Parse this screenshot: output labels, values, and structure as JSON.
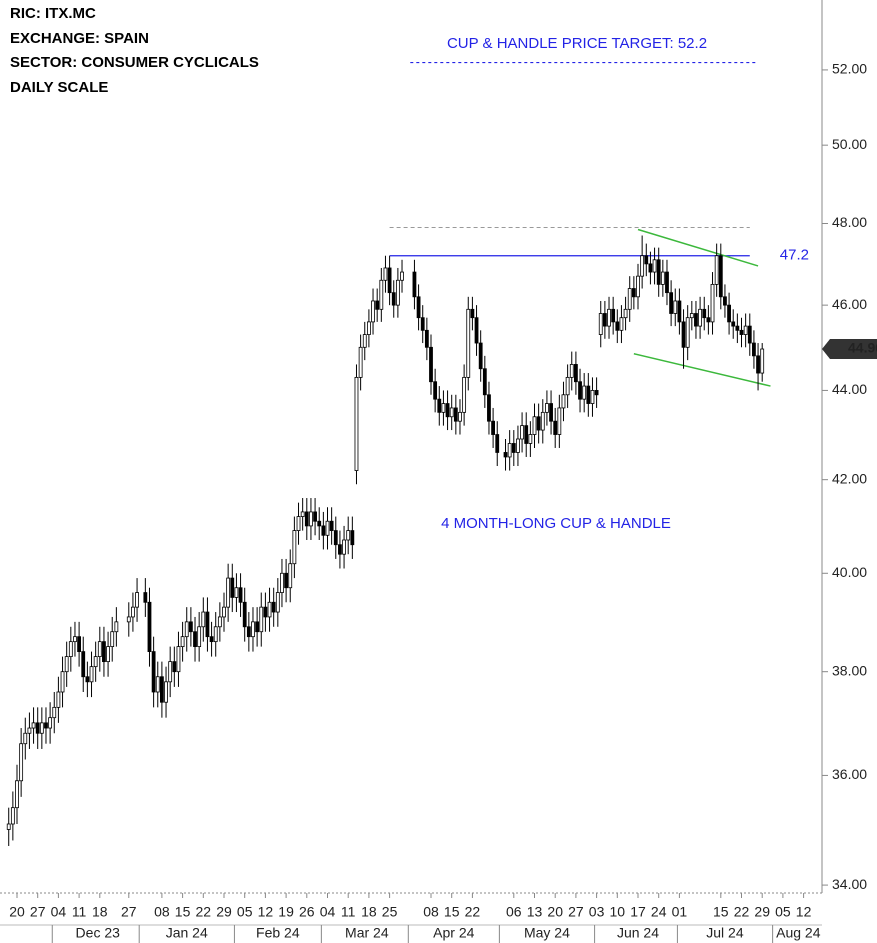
{
  "chart_data": {
    "type": "candlestick",
    "header": [
      "RIC:  ITX.MC",
      "EXCHANGE:  SPAIN",
      "SECTOR:  CONSUMER CYCLICALS",
      "DAILY SCALE"
    ],
    "target": {
      "text": "CUP & HANDLE PRICE TARGET: 52.2",
      "value": 52.2,
      "x": [
        "2024-04-01",
        "2024-07-26"
      ]
    },
    "pattern_label": "4 MONTH-LONG CUP & HANDLE",
    "resistance": {
      "value": 47.2,
      "x": [
        "2024-03-25",
        "2024-07-24"
      ]
    },
    "prior_high": {
      "value": 47.9,
      "x": [
        "2024-03-25",
        "2024-07-24"
      ]
    },
    "channel_upper": {
      "x": [
        "2024-06-17",
        "2024-07-26"
      ],
      "values": [
        47.85,
        46.95
      ]
    },
    "channel_lower": {
      "x": [
        "2024-06-14",
        "2024-07-31"
      ],
      "values": [
        44.85,
        44.1
      ]
    },
    "log_scale": true,
    "ylim": [
      33.86,
      53.93
    ],
    "yticks": [
      {
        "value": 34,
        "label": "34.00"
      },
      {
        "value": 36,
        "label": "36.00"
      },
      {
        "value": 38,
        "label": "38.00"
      },
      {
        "value": 40,
        "label": "40.00"
      },
      {
        "value": 42,
        "label": "42.00"
      },
      {
        "value": 44,
        "label": "44.00"
      },
      {
        "value": 46,
        "label": "46.00"
      },
      {
        "value": 48,
        "label": "48.00"
      },
      {
        "value": 50,
        "label": "50.00"
      },
      {
        "value": 52,
        "label": "52.00"
      }
    ],
    "xticks": [
      {
        "value": "2023-11-20",
        "label": "20"
      },
      {
        "value": "2023-11-27",
        "label": "27"
      },
      {
        "value": "2023-12-04",
        "label": "04"
      },
      {
        "value": "2023-12-11",
        "label": "11"
      },
      {
        "value": "2023-12-18",
        "label": "18"
      },
      {
        "value": "2023-12-27",
        "label": "27"
      },
      {
        "value": "2024-01-08",
        "label": "08"
      },
      {
        "value": "2024-01-15",
        "label": "15"
      },
      {
        "value": "2024-01-22",
        "label": "22"
      },
      {
        "value": "2024-01-29",
        "label": "29"
      },
      {
        "value": "2024-02-05",
        "label": "05"
      },
      {
        "value": "2024-02-12",
        "label": "12"
      },
      {
        "value": "2024-02-19",
        "label": "19"
      },
      {
        "value": "2024-02-26",
        "label": "26"
      },
      {
        "value": "2024-03-04",
        "label": "04"
      },
      {
        "value": "2024-03-11",
        "label": "11"
      },
      {
        "value": "2024-03-18",
        "label": "18"
      },
      {
        "value": "2024-03-25",
        "label": "25"
      },
      {
        "value": "2024-04-08",
        "label": "08"
      },
      {
        "value": "2024-04-15",
        "label": "15"
      },
      {
        "value": "2024-04-22",
        "label": "22"
      },
      {
        "value": "2024-05-06",
        "label": "06"
      },
      {
        "value": "2024-05-13",
        "label": "13"
      },
      {
        "value": "2024-05-20",
        "label": "20"
      },
      {
        "value": "2024-05-27",
        "label": "27"
      },
      {
        "value": "2024-06-03",
        "label": "03"
      },
      {
        "value": "2024-06-10",
        "label": "10"
      },
      {
        "value": "2024-06-17",
        "label": "17"
      },
      {
        "value": "2024-06-24",
        "label": "24"
      },
      {
        "value": "2024-07-01",
        "label": "01"
      },
      {
        "value": "2024-07-15",
        "label": "15"
      },
      {
        "value": "2024-07-22",
        "label": "22"
      },
      {
        "value": "2024-07-29",
        "label": "29"
      },
      {
        "value": "2024-08-05",
        "label": "05"
      },
      {
        "value": "2024-08-12",
        "label": "12"
      }
    ],
    "months": [
      {
        "value": "2023-12",
        "label": "Dec 23"
      },
      {
        "value": "2024-01",
        "label": "Jan 24"
      },
      {
        "value": "2024-02",
        "label": "Feb 24"
      },
      {
        "value": "2024-03",
        "label": "Mar 24"
      },
      {
        "value": "2024-04",
        "label": "Apr 24"
      },
      {
        "value": "2024-05",
        "label": "May 24"
      },
      {
        "value": "2024-06",
        "label": "Jun 24"
      },
      {
        "value": "2024-07",
        "label": "Jul 24"
      },
      {
        "value": "2024-08",
        "label": "Aug 24"
      }
    ],
    "x": [
      "2023-11-16",
      "2023-11-17",
      "2023-11-20",
      "2023-11-21",
      "2023-11-22",
      "2023-11-23",
      "2023-11-24",
      "2023-11-27",
      "2023-11-28",
      "2023-11-29",
      "2023-11-30",
      "2023-12-01",
      "2023-12-04",
      "2023-12-05",
      "2023-12-06",
      "2023-12-07",
      "2023-12-08",
      "2023-12-11",
      "2023-12-12",
      "2023-12-13",
      "2023-12-14",
      "2023-12-15",
      "2023-12-18",
      "2023-12-19",
      "2023-12-20",
      "2023-12-21",
      "2023-12-22",
      "2023-12-27",
      "2023-12-28",
      "2023-12-29",
      "2024-01-02",
      "2024-01-03",
      "2024-01-04",
      "2024-01-05",
      "2024-01-08",
      "2024-01-09",
      "2024-01-10",
      "2024-01-11",
      "2024-01-12",
      "2024-01-15",
      "2024-01-16",
      "2024-01-17",
      "2024-01-18",
      "2024-01-19",
      "2024-01-22",
      "2024-01-23",
      "2024-01-24",
      "2024-01-25",
      "2024-01-26",
      "2024-01-29",
      "2024-01-30",
      "2024-01-31",
      "2024-02-01",
      "2024-02-02",
      "2024-02-05",
      "2024-02-06",
      "2024-02-07",
      "2024-02-08",
      "2024-02-09",
      "2024-02-12",
      "2024-02-13",
      "2024-02-14",
      "2024-02-15",
      "2024-02-16",
      "2024-02-19",
      "2024-02-20",
      "2024-02-21",
      "2024-02-22",
      "2024-02-23",
      "2024-02-26",
      "2024-02-27",
      "2024-02-28",
      "2024-02-29",
      "2024-03-01",
      "2024-03-04",
      "2024-03-05",
      "2024-03-06",
      "2024-03-07",
      "2024-03-08",
      "2024-03-11",
      "2024-03-12",
      "2024-03-13",
      "2024-03-14",
      "2024-03-15",
      "2024-03-18",
      "2024-03-19",
      "2024-03-20",
      "2024-03-21",
      "2024-03-22",
      "2024-03-25",
      "2024-03-26",
      "2024-03-27",
      "2024-03-28",
      "2024-04-02",
      "2024-04-03",
      "2024-04-04",
      "2024-04-05",
      "2024-04-08",
      "2024-04-09",
      "2024-04-10",
      "2024-04-11",
      "2024-04-12",
      "2024-04-15",
      "2024-04-16",
      "2024-04-17",
      "2024-04-18",
      "2024-04-19",
      "2024-04-22",
      "2024-04-23",
      "2024-04-24",
      "2024-04-25",
      "2024-04-26",
      "2024-04-29",
      "2024-04-30",
      "2024-05-02",
      "2024-05-03",
      "2024-05-06",
      "2024-05-07",
      "2024-05-08",
      "2024-05-09",
      "2024-05-10",
      "2024-05-13",
      "2024-05-14",
      "2024-05-15",
      "2024-05-16",
      "2024-05-17",
      "2024-05-20",
      "2024-05-21",
      "2024-05-22",
      "2024-05-23",
      "2024-05-24",
      "2024-05-27",
      "2024-05-28",
      "2024-05-29",
      "2024-05-30",
      "2024-05-31",
      "2024-06-03",
      "2024-06-04",
      "2024-06-05",
      "2024-06-06",
      "2024-06-07",
      "2024-06-10",
      "2024-06-11",
      "2024-06-12",
      "2024-06-13",
      "2024-06-14",
      "2024-06-17",
      "2024-06-18",
      "2024-06-19",
      "2024-06-20",
      "2024-06-21",
      "2024-06-24",
      "2024-06-25",
      "2024-06-26",
      "2024-06-27",
      "2024-06-28",
      "2024-07-01",
      "2024-07-02",
      "2024-07-03",
      "2024-07-04",
      "2024-07-05",
      "2024-07-08",
      "2024-07-09",
      "2024-07-10",
      "2024-07-11",
      "2024-07-12",
      "2024-07-15",
      "2024-07-16",
      "2024-07-17",
      "2024-07-18",
      "2024-07-19",
      "2024-07-22",
      "2024-07-23",
      "2024-07-24",
      "2024-07-25",
      "2024-07-26",
      "2024-07-29"
    ],
    "open": [
      35.0,
      35.1,
      35.4,
      35.9,
      36.6,
      36.8,
      36.9,
      37.0,
      36.8,
      37.0,
      36.9,
      37.1,
      37.3,
      37.6,
      38.0,
      38.3,
      38.6,
      38.7,
      38.4,
      37.9,
      37.8,
      38.1,
      38.3,
      38.6,
      38.2,
      38.5,
      38.8,
      39.0,
      39.1,
      39.3,
      39.6,
      39.4,
      38.4,
      37.6,
      37.9,
      37.4,
      37.8,
      38.2,
      38.0,
      38.5,
      38.7,
      39.0,
      38.8,
      38.5,
      38.9,
      39.2,
      38.7,
      38.6,
      38.9,
      39.1,
      39.3,
      39.9,
      39.5,
      39.7,
      39.4,
      38.9,
      38.7,
      39.0,
      38.8,
      39.3,
      39.1,
      39.4,
      39.2,
      39.6,
      40.0,
      39.7,
      40.2,
      40.9,
      41.2,
      41.3,
      41.0,
      41.3,
      41.1,
      41.0,
      40.8,
      41.1,
      40.9,
      40.6,
      40.4,
      40.7,
      40.9,
      42.2,
      44.3,
      45.0,
      45.3,
      45.6,
      46.1,
      45.9,
      46.6,
      46.9,
      46.3,
      46.0,
      46.6,
      46.8,
      46.2,
      45.7,
      45.4,
      45.0,
      44.2,
      43.8,
      43.5,
      43.7,
      43.4,
      43.6,
      43.3,
      43.5,
      44.3,
      45.9,
      45.7,
      45.1,
      44.5,
      43.9,
      43.3,
      43.0,
      42.6,
      42.5,
      42.8,
      42.6,
      42.9,
      43.2,
      42.8,
      43.0,
      43.4,
      43.1,
      43.5,
      43.7,
      43.3,
      43.0,
      43.6,
      43.9,
      44.3,
      44.6,
      44.2,
      43.8,
      44.1,
      43.7,
      44.0,
      45.3,
      45.8,
      45.5,
      45.9,
      45.6,
      45.4,
      45.7,
      45.9,
      46.4,
      46.2,
      46.7,
      47.2,
      47.0,
      46.8,
      47.1,
      46.5,
      46.8,
      46.3,
      45.8,
      46.1,
      45.6,
      45.0,
      45.7,
      45.8,
      45.5,
      45.9,
      45.7,
      45.6,
      46.5,
      47.2,
      46.2,
      46.0,
      45.6,
      45.5,
      45.4,
      45.3,
      45.5,
      45.1,
      44.8,
      44.4
    ],
    "high": [
      35.4,
      35.7,
      36.2,
      36.9,
      37.1,
      37.2,
      37.3,
      37.3,
      37.3,
      37.3,
      37.4,
      37.6,
      37.9,
      38.3,
      38.6,
      38.9,
      39.0,
      39.0,
      38.7,
      38.2,
      38.4,
      38.6,
      38.9,
      38.9,
      38.8,
      39.1,
      39.3,
      39.4,
      39.6,
      39.9,
      39.9,
      39.7,
      38.7,
      38.2,
      38.2,
      38.1,
      38.5,
      38.5,
      38.8,
      39.0,
      39.3,
      39.3,
      39.1,
      39.2,
      39.5,
      39.5,
      39.0,
      39.2,
      39.4,
      39.6,
      40.2,
      40.2,
      40.0,
      40.0,
      39.7,
      39.2,
      39.3,
      39.3,
      39.6,
      39.6,
      39.7,
      39.7,
      39.9,
      40.3,
      40.3,
      40.5,
      41.2,
      41.5,
      41.6,
      41.6,
      41.6,
      41.6,
      41.4,
      41.3,
      41.4,
      41.4,
      41.2,
      40.9,
      41.0,
      41.2,
      41.2,
      44.6,
      45.3,
      45.6,
      45.9,
      46.4,
      46.4,
      46.9,
      47.2,
      47.2,
      46.6,
      46.9,
      47.1,
      47.1,
      46.5,
      46.0,
      45.7,
      45.3,
      44.5,
      44.1,
      44.0,
      44.0,
      43.9,
      43.9,
      43.8,
      44.6,
      46.2,
      46.2,
      46.0,
      45.4,
      44.8,
      44.2,
      43.6,
      43.3,
      42.9,
      43.1,
      43.1,
      43.2,
      43.5,
      43.5,
      43.3,
      43.7,
      43.7,
      43.8,
      44.0,
      44.0,
      43.6,
      43.9,
      44.2,
      44.6,
      44.9,
      44.9,
      44.5,
      44.4,
      44.4,
      44.3,
      44.3,
      46.1,
      46.1,
      46.2,
      46.2,
      45.9,
      46.0,
      46.2,
      46.7,
      46.7,
      47.0,
      47.7,
      47.5,
      47.3,
      47.4,
      47.4,
      47.1,
      47.1,
      46.6,
      46.4,
      46.4,
      45.9,
      46.0,
      46.1,
      46.1,
      46.2,
      46.2,
      46.0,
      46.8,
      47.5,
      47.5,
      46.5,
      46.3,
      45.9,
      45.8,
      45.7,
      45.8,
      45.8,
      45.4,
      45.1,
      45.1
    ],
    "low": [
      34.7,
      34.8,
      35.1,
      35.6,
      36.3,
      36.5,
      36.6,
      36.5,
      36.5,
      36.6,
      36.6,
      36.8,
      37.0,
      37.3,
      37.7,
      38.0,
      38.3,
      38.1,
      37.6,
      37.5,
      37.5,
      37.8,
      38.0,
      37.9,
      37.9,
      38.2,
      38.5,
      38.7,
      38.8,
      39.0,
      39.1,
      38.1,
      37.3,
      37.3,
      37.1,
      37.1,
      37.5,
      37.7,
      37.7,
      38.2,
      38.4,
      38.5,
      38.2,
      38.2,
      38.6,
      38.4,
      38.3,
      38.3,
      38.6,
      38.8,
      39.0,
      39.2,
      39.2,
      39.1,
      38.6,
      38.4,
      38.4,
      38.5,
      38.5,
      38.8,
      38.8,
      38.9,
      38.9,
      39.3,
      39.4,
      39.4,
      39.9,
      40.6,
      40.9,
      40.7,
      40.7,
      40.8,
      40.7,
      40.5,
      40.5,
      40.6,
      40.3,
      40.1,
      40.1,
      40.4,
      40.3,
      41.9,
      44.0,
      44.7,
      45.0,
      45.3,
      45.6,
      45.6,
      46.3,
      46.0,
      45.7,
      45.7,
      46.3,
      45.9,
      45.4,
      45.1,
      44.7,
      43.9,
      43.5,
      43.2,
      43.2,
      43.1,
      43.1,
      43.0,
      43.0,
      43.2,
      44.0,
      45.4,
      44.8,
      44.2,
      43.6,
      43.0,
      42.7,
      42.3,
      42.2,
      42.2,
      42.3,
      42.3,
      42.6,
      42.5,
      42.5,
      42.7,
      42.8,
      42.8,
      43.2,
      43.0,
      42.7,
      42.7,
      43.3,
      43.6,
      44.0,
      43.9,
      43.5,
      43.5,
      43.4,
      43.4,
      43.6,
      45.0,
      45.2,
      45.2,
      45.3,
      45.1,
      45.1,
      45.4,
      45.6,
      45.9,
      45.9,
      46.4,
      46.7,
      46.5,
      46.5,
      46.2,
      46.2,
      46.0,
      45.5,
      45.5,
      45.3,
      44.5,
      44.7,
      45.4,
      45.2,
      45.2,
      45.4,
      45.3,
      45.3,
      46.2,
      45.9,
      45.7,
      45.3,
      45.2,
      45.1,
      45.0,
      45.0,
      44.8,
      44.5,
      44.0,
      44.2
    ],
    "close": [
      35.1,
      35.4,
      35.9,
      36.6,
      36.8,
      36.9,
      37.0,
      36.8,
      37.0,
      36.9,
      37.1,
      37.3,
      37.6,
      38.0,
      38.3,
      38.6,
      38.7,
      38.4,
      37.9,
      37.8,
      38.1,
      38.3,
      38.6,
      38.2,
      38.5,
      38.8,
      39.0,
      39.1,
      39.3,
      39.6,
      39.4,
      38.4,
      37.6,
      37.9,
      37.4,
      37.8,
      38.2,
      38.0,
      38.5,
      38.7,
      39.0,
      38.8,
      38.5,
      38.9,
      39.2,
      38.7,
      38.6,
      38.9,
      39.1,
      39.3,
      39.9,
      39.5,
      39.7,
      39.4,
      38.9,
      38.7,
      39.0,
      38.8,
      39.3,
      39.1,
      39.4,
      39.2,
      39.6,
      40.0,
      39.7,
      40.2,
      40.9,
      41.2,
      41.3,
      41.0,
      41.3,
      41.1,
      41.0,
      40.8,
      41.1,
      40.9,
      40.6,
      40.4,
      40.7,
      40.9,
      40.6,
      44.3,
      45.0,
      45.3,
      45.6,
      46.1,
      45.9,
      46.6,
      46.9,
      46.3,
      46.0,
      46.6,
      46.8,
      46.2,
      45.7,
      45.4,
      45.0,
      44.2,
      43.8,
      43.5,
      43.7,
      43.4,
      43.6,
      43.3,
      43.5,
      44.3,
      45.9,
      45.7,
      45.1,
      44.5,
      43.9,
      43.3,
      43.0,
      42.6,
      42.5,
      42.8,
      42.6,
      42.9,
      43.2,
      42.8,
      43.0,
      43.4,
      43.1,
      43.5,
      43.7,
      43.3,
      43.0,
      43.6,
      43.9,
      44.3,
      44.6,
      44.2,
      43.8,
      44.1,
      43.7,
      44.0,
      43.9,
      45.8,
      45.5,
      45.9,
      45.6,
      45.4,
      45.7,
      45.9,
      46.4,
      46.2,
      46.7,
      47.2,
      47.0,
      46.8,
      47.1,
      46.5,
      46.8,
      46.3,
      45.8,
      46.1,
      45.6,
      45.0,
      45.7,
      45.8,
      45.5,
      45.9,
      45.7,
      45.6,
      46.5,
      47.2,
      46.2,
      46.0,
      45.6,
      45.5,
      45.4,
      45.3,
      45.5,
      45.1,
      44.8,
      44.4,
      44.96
    ],
    "up_color": "#ffffff",
    "down_color": "#000000"
  }
}
